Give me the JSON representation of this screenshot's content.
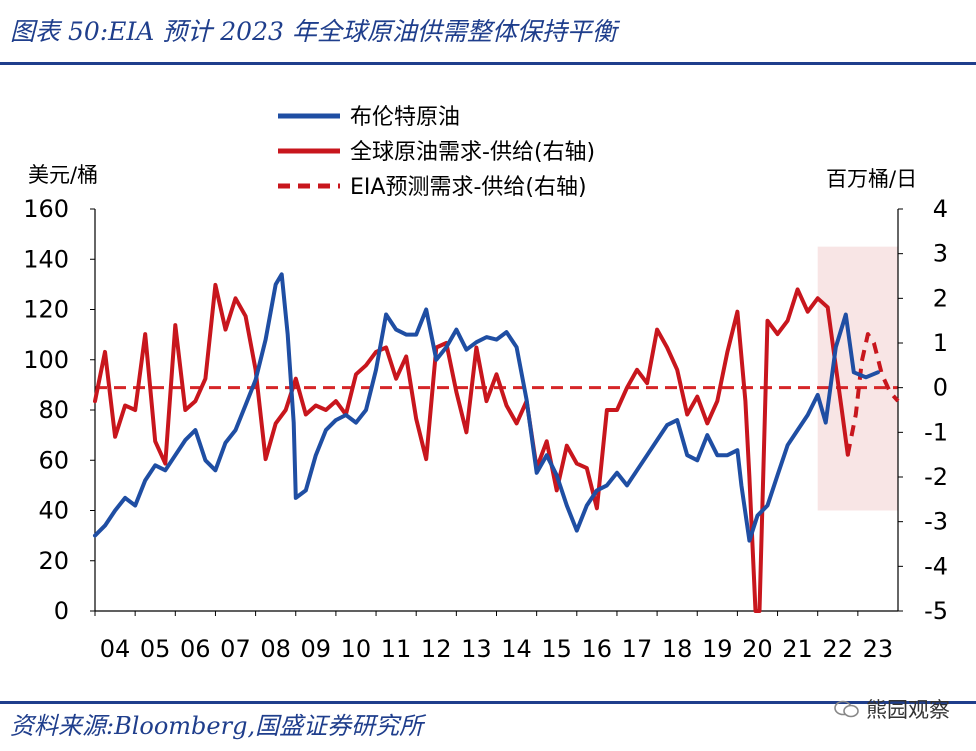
{
  "header": {
    "title": "图表 50:EIA 预计 2023 年全球原油供需整体保持平衡"
  },
  "footer": {
    "source": "资料来源:Bloomberg,国盛证券研究所",
    "watermark": "熊园观察"
  },
  "chart_data": {
    "type": "line",
    "title": "EIA 预计 2023 年全球原油供需整体保持平衡",
    "left_axis": {
      "unit": "美元/桶",
      "ylim": [
        0,
        160
      ],
      "ticks": [
        "0",
        "20",
        "40",
        "60",
        "80",
        "100",
        "120",
        "140",
        "160"
      ]
    },
    "right_axis": {
      "unit": "百万桶/日",
      "ylim": [
        -5,
        4
      ],
      "ticks": [
        "-5",
        "-4",
        "-3",
        "-2",
        "-1",
        "0",
        "1",
        "2",
        "3",
        "4"
      ]
    },
    "x_ticks": [
      "04",
      "05",
      "06",
      "07",
      "08",
      "09",
      "10",
      "11",
      "12",
      "13",
      "14",
      "15",
      "16",
      "17",
      "18",
      "19",
      "20",
      "21",
      "22",
      "23"
    ],
    "xlim": [
      2004.0,
      2024.0
    ],
    "forecast_region": {
      "x": [
        2022.0,
        2024.0
      ],
      "left_y": [
        40,
        145
      ]
    },
    "legend": [
      {
        "label": "布伦特原油",
        "color": "#1f4ea3",
        "style": "solid"
      },
      {
        "label": "全球原油需求-供给(右轴)",
        "color": "#c8161d",
        "style": "solid"
      },
      {
        "label": "EIA预测需求-供给(右轴)",
        "color": "#c8161d",
        "style": "dashed"
      }
    ],
    "reference_line": {
      "axis": "right",
      "value": 0,
      "color": "#d62628",
      "style": "dashed"
    },
    "series": [
      {
        "name": "布伦特原油",
        "axis": "left",
        "color": "#1f4ea3",
        "x": [
          2004.0,
          2004.25,
          2004.5,
          2004.75,
          2005.0,
          2005.25,
          2005.5,
          2005.75,
          2006.0,
          2006.25,
          2006.5,
          2006.75,
          2007.0,
          2007.25,
          2007.5,
          2007.75,
          2008.0,
          2008.25,
          2008.5,
          2008.65,
          2008.8,
          2008.95,
          2009.0,
          2009.25,
          2009.5,
          2009.75,
          2010.0,
          2010.25,
          2010.5,
          2010.75,
          2011.0,
          2011.25,
          2011.5,
          2011.75,
          2012.0,
          2012.25,
          2012.5,
          2012.75,
          2013.0,
          2013.25,
          2013.5,
          2013.75,
          2014.0,
          2014.25,
          2014.5,
          2014.75,
          2015.0,
          2015.25,
          2015.5,
          2015.75,
          2016.0,
          2016.25,
          2016.5,
          2016.75,
          2017.0,
          2017.25,
          2017.5,
          2017.75,
          2018.0,
          2018.25,
          2018.5,
          2018.75,
          2019.0,
          2019.25,
          2019.5,
          2019.75,
          2020.0,
          2020.1,
          2020.3,
          2020.5,
          2020.75,
          2021.0,
          2021.25,
          2021.5,
          2021.75,
          2022.0,
          2022.2,
          2022.45,
          2022.7,
          2022.9,
          2023.2,
          2023.5
        ],
        "values": [
          30,
          34,
          40,
          45,
          42,
          52,
          58,
          56,
          62,
          68,
          72,
          60,
          56,
          67,
          72,
          82,
          92,
          108,
          130,
          134,
          110,
          75,
          45,
          48,
          62,
          72,
          76,
          78,
          75,
          80,
          96,
          118,
          112,
          110,
          110,
          120,
          100,
          105,
          112,
          104,
          107,
          109,
          108,
          111,
          105,
          84,
          55,
          62,
          54,
          42,
          32,
          42,
          48,
          50,
          55,
          50,
          56,
          62,
          68,
          74,
          76,
          62,
          60,
          70,
          62,
          62,
          64,
          50,
          28,
          38,
          42,
          54,
          66,
          72,
          78,
          86,
          75,
          105,
          118,
          95,
          93,
          95
        ]
      },
      {
        "name": "全球原油需求-供给(右轴)",
        "axis": "right",
        "color": "#c8161d",
        "x": [
          2004.0,
          2004.25,
          2004.5,
          2004.75,
          2005.0,
          2005.25,
          2005.5,
          2005.75,
          2006.0,
          2006.25,
          2006.5,
          2006.75,
          2007.0,
          2007.25,
          2007.5,
          2007.75,
          2008.0,
          2008.25,
          2008.5,
          2008.75,
          2009.0,
          2009.25,
          2009.5,
          2009.75,
          2010.0,
          2010.25,
          2010.5,
          2010.75,
          2011.0,
          2011.25,
          2011.5,
          2011.75,
          2012.0,
          2012.25,
          2012.5,
          2012.75,
          2013.0,
          2013.25,
          2013.5,
          2013.75,
          2014.0,
          2014.25,
          2014.5,
          2014.75,
          2015.0,
          2015.25,
          2015.5,
          2015.75,
          2016.0,
          2016.25,
          2016.5,
          2016.75,
          2017.0,
          2017.25,
          2017.5,
          2017.75,
          2018.0,
          2018.25,
          2018.5,
          2018.75,
          2019.0,
          2019.25,
          2019.5,
          2019.75,
          2020.0,
          2020.2,
          2020.3,
          2020.45,
          2020.55,
          2020.75,
          2021.0,
          2021.25,
          2021.5,
          2021.75,
          2022.0,
          2022.25,
          2022.4,
          2022.6,
          2022.75
        ],
        "values": [
          -0.3,
          0.8,
          -1.1,
          -0.4,
          -0.5,
          1.2,
          -1.2,
          -1.7,
          1.4,
          -0.5,
          -0.3,
          0.2,
          2.3,
          1.3,
          2.0,
          1.6,
          0.4,
          -1.6,
          -0.8,
          -0.5,
          0.2,
          -0.6,
          -0.4,
          -0.5,
          -0.3,
          -0.6,
          0.3,
          0.5,
          0.8,
          0.9,
          0.2,
          0.7,
          -0.7,
          -1.6,
          0.9,
          1.0,
          -0.1,
          -1.0,
          0.9,
          -0.3,
          0.3,
          -0.4,
          -0.8,
          -0.3,
          -1.8,
          -1.2,
          -2.3,
          -1.3,
          -1.7,
          -1.8,
          -2.7,
          -0.5,
          -0.5,
          0.0,
          0.4,
          0.1,
          1.3,
          0.9,
          0.4,
          -0.6,
          -0.2,
          -0.8,
          -0.3,
          0.8,
          1.7,
          -0.3,
          -2.0,
          -5.0,
          -5.0,
          1.5,
          1.2,
          1.5,
          2.2,
          1.7,
          2.0,
          1.8,
          0.8,
          -0.5,
          -1.5
        ]
      },
      {
        "name": "EIA预测需求-供给(右轴)",
        "axis": "right",
        "color": "#c8161d",
        "style": "dashed",
        "x": [
          2022.75,
          2022.95,
          2023.1,
          2023.25,
          2023.4,
          2023.6,
          2023.8,
          2024.0
        ],
        "values": [
          -1.5,
          -0.6,
          0.6,
          1.2,
          1.0,
          0.3,
          -0.1,
          -0.3
        ]
      }
    ]
  }
}
